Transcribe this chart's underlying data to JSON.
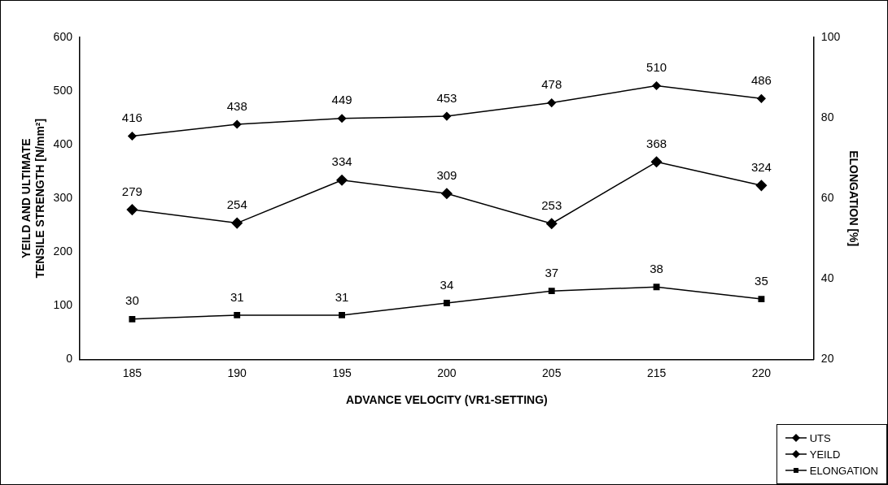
{
  "chart_data": {
    "type": "line",
    "xlabel": "ADVANCE VELOCITY (VR1-SETTING)",
    "ylabel": "YEILD AND ULTIMATE TENSILE STRENGTH [N/mm²]",
    "y2label": "ELONGATION [%]",
    "categories": [
      "185",
      "190",
      "195",
      "200",
      "205",
      "215",
      "220"
    ],
    "series": [
      {
        "name": "UTS",
        "color": "#000000",
        "marker": "diamond",
        "values": [
          416,
          438,
          449,
          453,
          478,
          510,
          486
        ]
      },
      {
        "name": "YEILD",
        "color": "#000000",
        "marker": "diamond",
        "values": [
          279,
          254,
          334,
          309,
          253,
          368,
          324
        ]
      },
      {
        "name": "ELONGATION",
        "color": "#000000",
        "marker": "square",
        "axis": "y2",
        "values": [
          30,
          31,
          31,
          34,
          37,
          38,
          35
        ]
      }
    ],
    "ylim": [
      0,
      600
    ],
    "yticks": [
      0,
      100,
      200,
      300,
      400,
      500,
      600
    ],
    "y2lim": [
      20,
      100
    ],
    "y2ticks": [
      20,
      40,
      60,
      80,
      100
    ],
    "grid": false,
    "legend": "bottom right",
    "data_labels": true
  }
}
